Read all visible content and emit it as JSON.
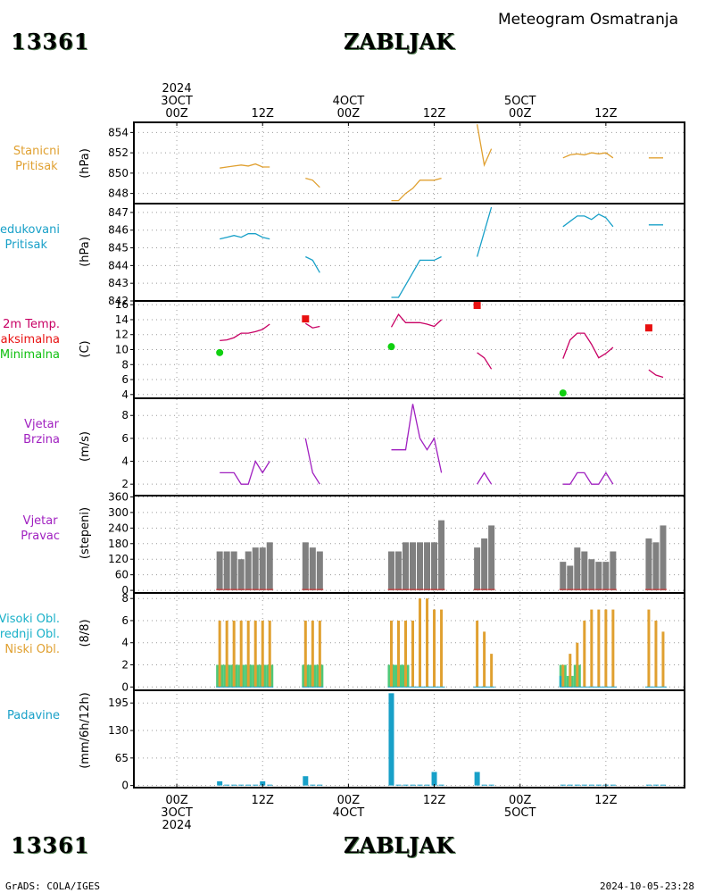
{
  "header": {
    "station_id": "13361",
    "station_name": "ZABLJAK",
    "title": "Meteogram Osmatranja"
  },
  "footer": {
    "station_id": "13361",
    "station_name": "ZABLJAK",
    "source": "GrADS: COLA/IGES",
    "timestamp": "2024-10-05-23:28"
  },
  "time_axis": {
    "top_labels": [
      {
        "lines": [
          "2024",
          "3OCT",
          "00Z"
        ],
        "hour": 0
      },
      {
        "lines": [
          "12Z"
        ],
        "hour": 12
      },
      {
        "lines": [
          "4OCT",
          "00Z"
        ],
        "hour": 24
      },
      {
        "lines": [
          "12Z"
        ],
        "hour": 36
      },
      {
        "lines": [
          "5OCT",
          "00Z"
        ],
        "hour": 48
      },
      {
        "lines": [
          "12Z"
        ],
        "hour": 60
      }
    ],
    "bottom_labels": [
      {
        "lines": [
          "00Z",
          "3OCT",
          "2024"
        ],
        "hour": 0
      },
      {
        "lines": [
          "12Z"
        ],
        "hour": 12
      },
      {
        "lines": [
          "00Z",
          "4OCT"
        ],
        "hour": 24
      },
      {
        "lines": [
          "12Z"
        ],
        "hour": 36
      },
      {
        "lines": [
          "00Z",
          "5OCT"
        ],
        "hour": 48
      },
      {
        "lines": [
          "12Z"
        ],
        "hour": 60
      }
    ]
  },
  "panels": [
    {
      "key": "station_pressure",
      "labels": [
        "Stanicni",
        "Pritisak"
      ],
      "label_colors": [
        "#e0a030",
        "#e0a030"
      ],
      "unit": "(hPa)"
    },
    {
      "key": "reduced_pressure",
      "labels": [
        "Redukovani",
        "Pritisak"
      ],
      "label_colors": [
        "#18a0c8",
        "#18a0c8"
      ],
      "unit": "(hPa)"
    },
    {
      "key": "temperature",
      "labels": [
        "2m Temp.",
        "Maksimalna",
        "Minimalna"
      ],
      "label_colors": [
        "#c80064",
        "#e81010",
        "#10c010"
      ],
      "unit": "(C)"
    },
    {
      "key": "wind_speed",
      "labels": [
        "Vjetar",
        "Brzina"
      ],
      "label_colors": [
        "#a020c0",
        "#a020c0"
      ],
      "unit": "(m/s)"
    },
    {
      "key": "wind_direction",
      "labels": [
        "Vjetar",
        "Pravac"
      ],
      "label_colors": [
        "#a020c0",
        "#a020c0"
      ],
      "unit": "(stepeni)"
    },
    {
      "key": "clouds",
      "labels": [
        "Visoki Obl.",
        "Srednji Obl.",
        "Niski Obl."
      ],
      "label_colors": [
        "#18b0c8",
        "#18b0c8",
        "#e0a030"
      ],
      "unit": "(8/8)"
    },
    {
      "key": "precipitation",
      "labels": [
        "Padavine"
      ],
      "label_colors": [
        "#18a0c8"
      ],
      "unit": "(mm/6h/12h)"
    }
  ],
  "chart_data": [
    {
      "type": "line",
      "panel": "station_pressure",
      "color": "#e0a030",
      "ylim": [
        847,
        855
      ],
      "yticks": [
        848,
        850,
        852,
        854
      ],
      "grid": true,
      "series": [
        {
          "x": [
            6,
            7,
            8,
            9,
            10,
            11,
            12,
            13
          ],
          "y": [
            850.5,
            850.6,
            850.7,
            850.8,
            850.7,
            850.9,
            850.6,
            850.6
          ]
        },
        {
          "x": [
            18,
            19,
            20
          ],
          "y": [
            849.5,
            849.3,
            848.6
          ]
        },
        {
          "x": [
            30,
            31,
            32,
            33,
            34,
            35,
            36,
            37
          ],
          "y": [
            847.3,
            847.3,
            848.0,
            848.5,
            849.3,
            849.3,
            849.3,
            849.5
          ]
        },
        {
          "x": [
            42,
            43,
            44
          ],
          "y": [
            854.8,
            850.8,
            852.4
          ]
        },
        {
          "x": [
            54,
            55,
            56,
            57,
            58,
            59,
            60,
            61
          ],
          "y": [
            851.5,
            851.8,
            851.9,
            851.8,
            852.0,
            851.9,
            852.0,
            851.5
          ]
        },
        {
          "x": [
            66,
            67,
            68
          ],
          "y": [
            851.5,
            851.5,
            851.5
          ]
        }
      ]
    },
    {
      "type": "line",
      "panel": "reduced_pressure",
      "color": "#18a0c8",
      "ylim": [
        842,
        847.5
      ],
      "yticks": [
        842,
        843,
        844,
        845,
        846,
        847
      ],
      "grid": true,
      "series": [
        {
          "x": [
            6,
            7,
            8,
            9,
            10,
            11,
            12,
            13
          ],
          "y": [
            845.5,
            845.6,
            845.7,
            845.6,
            845.8,
            845.8,
            845.6,
            845.5
          ]
        },
        {
          "x": [
            18,
            19,
            20
          ],
          "y": [
            844.5,
            844.3,
            843.6
          ]
        },
        {
          "x": [
            30,
            31,
            32,
            33,
            34,
            35,
            36,
            37
          ],
          "y": [
            842.2,
            842.2,
            842.9,
            843.6,
            844.3,
            844.3,
            844.3,
            844.5
          ]
        },
        {
          "x": [
            42,
            43,
            44
          ],
          "y": [
            844.5,
            845.9,
            847.3
          ]
        },
        {
          "x": [
            54,
            55,
            56,
            57,
            58,
            59,
            60,
            61
          ],
          "y": [
            846.2,
            846.5,
            846.8,
            846.8,
            846.6,
            846.9,
            846.7,
            846.2
          ]
        },
        {
          "x": [
            66,
            67,
            68
          ],
          "y": [
            846.3,
            846.3,
            846.3
          ]
        }
      ]
    },
    {
      "type": "line",
      "panel": "temperature",
      "color": "#c80064",
      "ylim": [
        3.5,
        16.5
      ],
      "yticks": [
        4,
        6,
        8,
        10,
        12,
        14,
        16
      ],
      "grid": true,
      "series": [
        {
          "name": "2m Temp.",
          "x": [
            6,
            7,
            8,
            9,
            10,
            11,
            12,
            13
          ],
          "y": [
            11.2,
            11.3,
            11.6,
            12.2,
            12.2,
            12.4,
            12.7,
            13.4
          ]
        },
        {
          "name": "2m Temp.",
          "x": [
            18,
            19,
            20
          ],
          "y": [
            13.5,
            12.9,
            13.1
          ]
        },
        {
          "name": "2m Temp.",
          "x": [
            30,
            31,
            32,
            33,
            34,
            35,
            36,
            37
          ],
          "y": [
            13.0,
            14.7,
            13.6,
            13.6,
            13.6,
            13.4,
            13.1,
            14.0
          ]
        },
        {
          "name": "2m Temp.",
          "x": [
            42,
            43,
            44
          ],
          "y": [
            9.6,
            8.9,
            7.4
          ]
        },
        {
          "name": "2m Temp.",
          "x": [
            54,
            55,
            56,
            57,
            58,
            59,
            60,
            61
          ],
          "y": [
            8.8,
            11.3,
            12.2,
            12.2,
            10.7,
            8.9,
            9.5,
            10.3
          ]
        },
        {
          "name": "2m Temp.",
          "x": [
            66,
            67,
            68
          ],
          "y": [
            7.3,
            6.6,
            6.3
          ]
        }
      ],
      "max_points": [
        {
          "x": 18,
          "y": 14.1
        },
        {
          "x": 42,
          "y": 15.9
        },
        {
          "x": 66,
          "y": 12.9
        }
      ],
      "min_points": [
        {
          "x": 6,
          "y": 9.6
        },
        {
          "x": 30,
          "y": 10.4
        },
        {
          "x": 54,
          "y": 4.2
        }
      ],
      "max_color": "#e81010",
      "min_color": "#10d010"
    },
    {
      "type": "line",
      "panel": "wind_speed",
      "color": "#a020c0",
      "ylim": [
        1,
        9.5
      ],
      "yticks": [
        2,
        4,
        6,
        8
      ],
      "grid": true,
      "series": [
        {
          "x": [
            6,
            7,
            8,
            9,
            10,
            11,
            12,
            13
          ],
          "y": [
            3,
            3,
            3,
            2,
            2,
            4,
            3,
            4
          ]
        },
        {
          "x": [
            18,
            19,
            20
          ],
          "y": [
            6,
            3,
            2
          ]
        },
        {
          "x": [
            30,
            31,
            32,
            33,
            34,
            35,
            36,
            37
          ],
          "y": [
            5,
            5,
            5,
            9,
            6,
            5,
            6,
            3
          ]
        },
        {
          "x": [
            42,
            43,
            44
          ],
          "y": [
            2,
            3,
            2
          ]
        },
        {
          "x": [
            54,
            55,
            56,
            57,
            58,
            59,
            60,
            61
          ],
          "y": [
            2,
            2,
            3,
            3,
            2,
            2,
            3,
            2
          ]
        },
        {
          "x": [
            66,
            67,
            68
          ],
          "y": [
            1,
            1,
            1
          ]
        }
      ]
    },
    {
      "type": "bar",
      "panel": "wind_direction",
      "color": "#808080",
      "ylim": [
        -10,
        365
      ],
      "yticks": [
        0,
        60,
        120,
        180,
        240,
        300,
        360
      ],
      "grid": true,
      "x": [
        6,
        7,
        8,
        9,
        10,
        11,
        12,
        13,
        18,
        19,
        20,
        30,
        31,
        32,
        33,
        34,
        35,
        36,
        37,
        42,
        43,
        44,
        54,
        55,
        56,
        57,
        58,
        59,
        60,
        61,
        66,
        67,
        68
      ],
      "values": [
        150,
        150,
        150,
        120,
        150,
        165,
        165,
        185,
        185,
        165,
        150,
        150,
        150,
        185,
        185,
        185,
        185,
        185,
        270,
        165,
        200,
        250,
        110,
        95,
        165,
        150,
        120,
        110,
        110,
        150,
        200,
        185,
        250
      ]
    },
    {
      "type": "bar",
      "panel": "clouds",
      "ylim": [
        -0.3,
        8.5
      ],
      "yticks": [
        0,
        2,
        4,
        6,
        8
      ],
      "grid": true,
      "x": [
        6,
        7,
        8,
        9,
        10,
        11,
        12,
        13,
        18,
        19,
        20,
        30,
        31,
        32,
        33,
        34,
        35,
        36,
        37,
        42,
        43,
        44,
        54,
        55,
        56,
        57,
        58,
        59,
        60,
        61,
        66,
        67,
        68
      ],
      "series": [
        {
          "name": "Niski Obl.",
          "color": "#e0a030",
          "values": [
            6,
            6,
            6,
            6,
            6,
            6,
            6,
            6,
            6,
            6,
            6,
            6,
            6,
            6,
            6,
            8,
            8,
            7,
            7,
            6,
            5,
            3,
            2,
            3,
            4,
            6,
            7,
            7,
            7,
            7,
            7,
            6,
            5
          ]
        },
        {
          "name": "Srednji Obl.",
          "color": "#30c060",
          "values": [
            2,
            2,
            2,
            2,
            2,
            2,
            2,
            2,
            2,
            2,
            2,
            2,
            2,
            2,
            0,
            0,
            0,
            0,
            0,
            0,
            0,
            0,
            2,
            1,
            2,
            0,
            0,
            0,
            0,
            0,
            0,
            0,
            0
          ]
        },
        {
          "name": "Visoki Obl.",
          "color": "#18b0c8",
          "values": [
            0,
            0,
            0,
            0,
            0,
            0,
            0,
            0,
            0,
            0,
            0,
            0,
            0,
            0,
            0,
            0,
            0,
            0,
            0,
            0,
            0,
            0,
            1,
            0,
            0,
            0,
            0,
            0,
            0,
            0,
            0,
            0,
            0
          ]
        }
      ]
    },
    {
      "type": "bar",
      "panel": "precipitation",
      "color": "#18a0c8",
      "ylim": [
        -5,
        225
      ],
      "yticks": [
        0,
        65,
        130,
        195
      ],
      "grid": true,
      "x": [
        6,
        7,
        8,
        9,
        10,
        11,
        12,
        13,
        18,
        19,
        20,
        30,
        31,
        32,
        33,
        34,
        35,
        36,
        37,
        42,
        43,
        44,
        54,
        55,
        56,
        57,
        58,
        59,
        60,
        61,
        66,
        67,
        68
      ],
      "values": [
        10,
        2,
        2,
        2,
        2,
        2,
        10,
        2,
        22,
        2,
        2,
        218,
        2,
        2,
        2,
        2,
        2,
        32,
        2,
        32,
        2,
        2,
        2,
        2,
        2,
        2,
        2,
        2,
        2,
        2,
        2,
        2,
        2
      ]
    }
  ]
}
